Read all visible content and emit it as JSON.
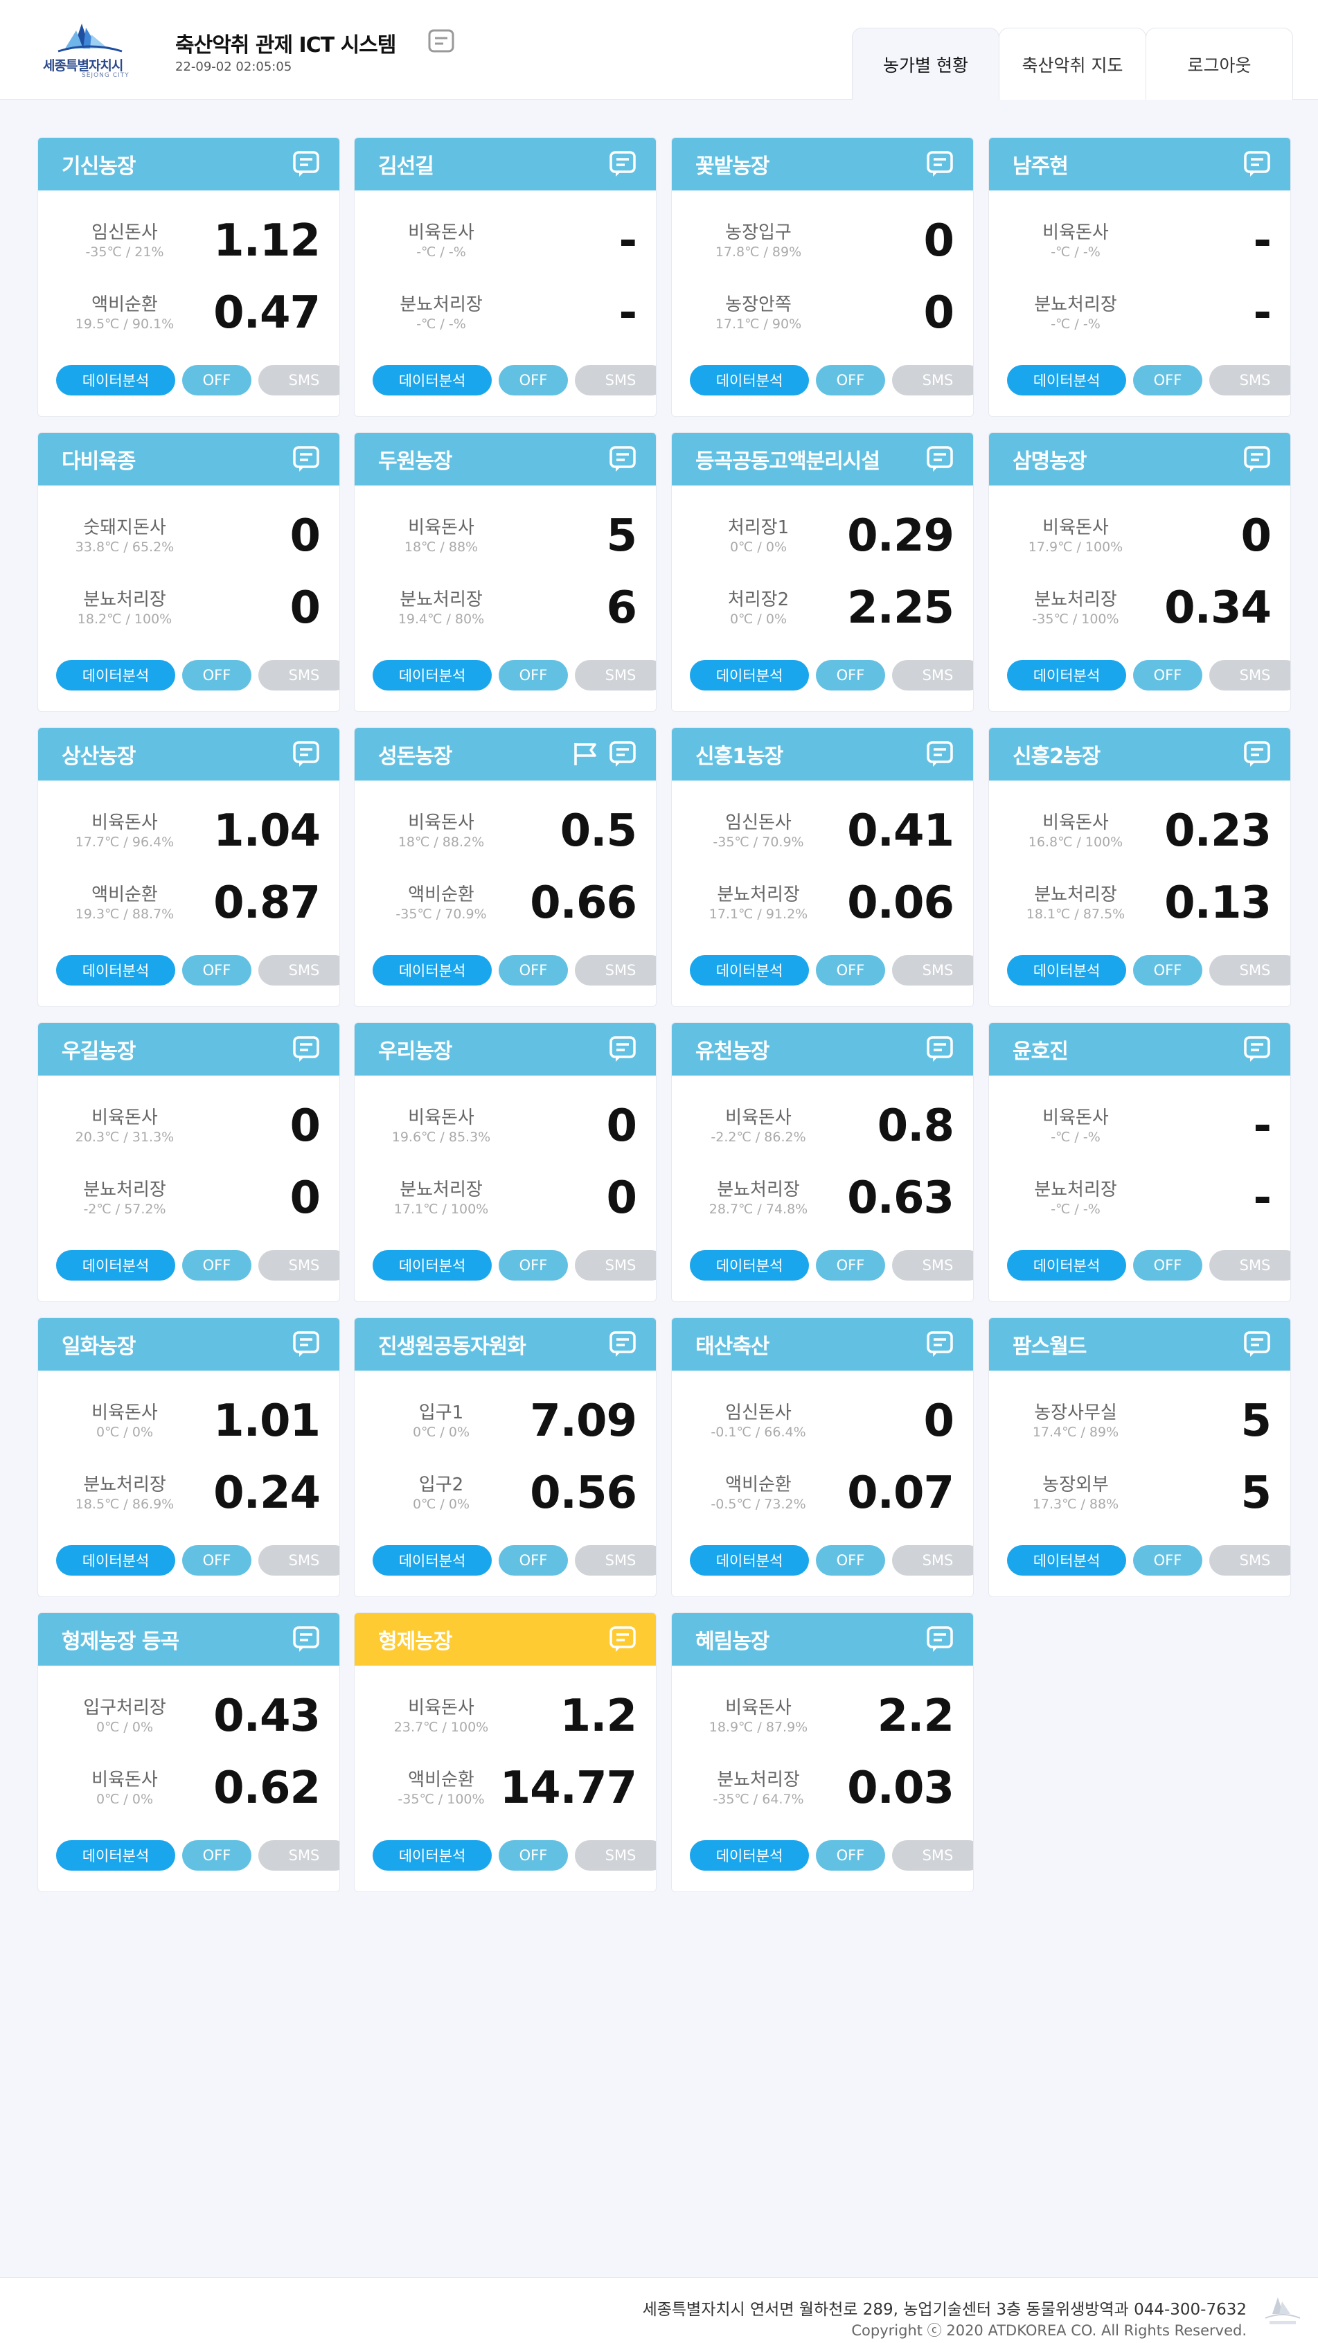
{
  "header": {
    "logo_text": "세종특별자치시",
    "logo_sub": "SEJONG CITY",
    "title": "축산악취 관제 ICT 시스템",
    "datetime": "22-09-02 02:05:05",
    "nav": [
      {
        "label": "농가별 현황",
        "active": true
      },
      {
        "label": "축산악취 지도",
        "active": false
      },
      {
        "label": "로그아웃",
        "active": false
      }
    ]
  },
  "buttons": {
    "analysis": "데이터분석",
    "off": "OFF",
    "sms": "SMS"
  },
  "farms": [
    {
      "name": "기신농장",
      "rows": [
        {
          "label": "임신돈사",
          "sub": "-35℃ / 21%",
          "value": "1.12"
        },
        {
          "label": "액비순환",
          "sub": "19.5℃ / 90.1%",
          "value": "0.47"
        }
      ]
    },
    {
      "name": "김선길",
      "rows": [
        {
          "label": "비육돈사",
          "sub": "-℃ / -%",
          "value": "-"
        },
        {
          "label": "분뇨처리장",
          "sub": "-℃ / -%",
          "value": "-"
        }
      ]
    },
    {
      "name": "꽃밭농장",
      "rows": [
        {
          "label": "농장입구",
          "sub": "17.8℃ / 89%",
          "value": "0"
        },
        {
          "label": "농장안쪽",
          "sub": "17.1℃ / 90%",
          "value": "0"
        }
      ]
    },
    {
      "name": "남주현",
      "rows": [
        {
          "label": "비육돈사",
          "sub": "-℃ / -%",
          "value": "-"
        },
        {
          "label": "분뇨처리장",
          "sub": "-℃ / -%",
          "value": "-"
        }
      ]
    },
    {
      "name": "다비육종",
      "rows": [
        {
          "label": "숫돼지돈사",
          "sub": "33.8℃ / 65.2%",
          "value": "0"
        },
        {
          "label": "분뇨처리장",
          "sub": "18.2℃ / 100%",
          "value": "0"
        }
      ]
    },
    {
      "name": "두원농장",
      "rows": [
        {
          "label": "비육돈사",
          "sub": "18℃ / 88%",
          "value": "5"
        },
        {
          "label": "분뇨처리장",
          "sub": "19.4℃ / 80%",
          "value": "6"
        }
      ]
    },
    {
      "name": "등곡공동고액분리시설",
      "rows": [
        {
          "label": "처리장1",
          "sub": "0℃ / 0%",
          "value": "0.29"
        },
        {
          "label": "처리장2",
          "sub": "0℃ / 0%",
          "value": "2.25"
        }
      ]
    },
    {
      "name": "삼명농장",
      "rows": [
        {
          "label": "비육돈사",
          "sub": "17.9℃ / 100%",
          "value": "0"
        },
        {
          "label": "분뇨처리장",
          "sub": "-35℃ / 100%",
          "value": "0.34"
        }
      ]
    },
    {
      "name": "상산농장",
      "rows": [
        {
          "label": "비육돈사",
          "sub": "17.7℃ / 96.4%",
          "value": "1.04"
        },
        {
          "label": "액비순환",
          "sub": "19.3℃ / 88.7%",
          "value": "0.87"
        }
      ]
    },
    {
      "name": "성돈농장",
      "flag": true,
      "rows": [
        {
          "label": "비육돈사",
          "sub": "18℃ / 88.2%",
          "value": "0.5"
        },
        {
          "label": "액비순환",
          "sub": "-35℃ / 70.9%",
          "value": "0.66"
        }
      ]
    },
    {
      "name": "신흥1농장",
      "rows": [
        {
          "label": "임신돈사",
          "sub": "-35℃ / 70.9%",
          "value": "0.41"
        },
        {
          "label": "분뇨처리장",
          "sub": "17.1℃ / 91.2%",
          "value": "0.06"
        }
      ]
    },
    {
      "name": "신흥2농장",
      "rows": [
        {
          "label": "비육돈사",
          "sub": "16.8℃ / 100%",
          "value": "0.23"
        },
        {
          "label": "분뇨처리장",
          "sub": "18.1℃ / 87.5%",
          "value": "0.13"
        }
      ]
    },
    {
      "name": "우길농장",
      "rows": [
        {
          "label": "비육돈사",
          "sub": "20.3℃ / 31.3%",
          "value": "0"
        },
        {
          "label": "분뇨처리장",
          "sub": "-2℃ / 57.2%",
          "value": "0"
        }
      ]
    },
    {
      "name": "우리농장",
      "rows": [
        {
          "label": "비육돈사",
          "sub": "19.6℃ / 85.3%",
          "value": "0"
        },
        {
          "label": "분뇨처리장",
          "sub": "17.1℃ / 100%",
          "value": "0"
        }
      ]
    },
    {
      "name": "유천농장",
      "rows": [
        {
          "label": "비육돈사",
          "sub": "-2.2℃ / 86.2%",
          "value": "0.8"
        },
        {
          "label": "분뇨처리장",
          "sub": "28.7℃ / 74.8%",
          "value": "0.63"
        }
      ]
    },
    {
      "name": "윤호진",
      "rows": [
        {
          "label": "비육돈사",
          "sub": "-℃ / -%",
          "value": "-"
        },
        {
          "label": "분뇨처리장",
          "sub": "-℃ / -%",
          "value": "-"
        }
      ]
    },
    {
      "name": "일화농장",
      "rows": [
        {
          "label": "비육돈사",
          "sub": "0℃ / 0%",
          "value": "1.01"
        },
        {
          "label": "분뇨처리장",
          "sub": "18.5℃ / 86.9%",
          "value": "0.24"
        }
      ]
    },
    {
      "name": "진생원공동자원화",
      "rows": [
        {
          "label": "입구1",
          "sub": "0℃ / 0%",
          "value": "7.09"
        },
        {
          "label": "입구2",
          "sub": "0℃ / 0%",
          "value": "0.56"
        }
      ]
    },
    {
      "name": "태산축산",
      "rows": [
        {
          "label": "임신돈사",
          "sub": "-0.1℃ / 66.4%",
          "value": "0"
        },
        {
          "label": "액비순환",
          "sub": "-0.5℃ / 73.2%",
          "value": "0.07"
        }
      ]
    },
    {
      "name": "팜스월드",
      "rows": [
        {
          "label": "농장사무실",
          "sub": "17.4℃ / 89%",
          "value": "5"
        },
        {
          "label": "농장외부",
          "sub": "17.3℃ / 88%",
          "value": "5"
        }
      ]
    },
    {
      "name": "형제농장 등곡",
      "rows": [
        {
          "label": "입구처리장",
          "sub": "0℃ / 0%",
          "value": "0.43"
        },
        {
          "label": "비육돈사",
          "sub": "0℃ / 0%",
          "value": "0.62"
        }
      ]
    },
    {
      "name": "형제농장",
      "highlight": true,
      "rows": [
        {
          "label": "비육돈사",
          "sub": "23.7℃ / 100%",
          "value": "1.2"
        },
        {
          "label": "액비순환",
          "sub": "-35℃ / 100%",
          "value": "14.77"
        }
      ]
    },
    {
      "name": "혜림농장",
      "rows": [
        {
          "label": "비육돈사",
          "sub": "18.9℃ / 87.9%",
          "value": "2.2"
        },
        {
          "label": "분뇨처리장",
          "sub": "-35℃ / 64.7%",
          "value": "0.03"
        }
      ]
    }
  ],
  "colors": {
    "header_blue": "#62c1e3",
    "header_highlight": "#fecb33",
    "analysis_btn": "#1aa6ec",
    "sms_btn": "#cfd2d7"
  },
  "icons": {
    "memo": "memo-icon",
    "flag": "flag-icon"
  },
  "footer": {
    "address": "세종특별자치시 연서면 월하천로 289, 농업기술센터 3층 동물위생방역과 044-300-7632",
    "copyright": "Copyright ⓒ 2020 ATDKOREA CO. All Rights Reserved."
  }
}
